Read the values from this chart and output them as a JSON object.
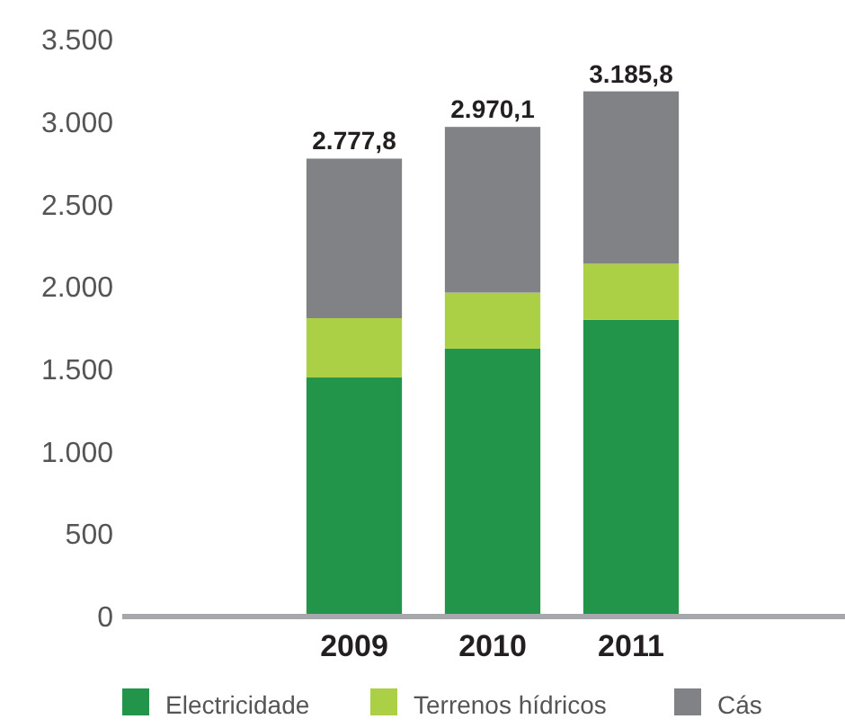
{
  "chart_data": {
    "type": "bar",
    "stacked": true,
    "categories": [
      "2009",
      "2010",
      "2011"
    ],
    "series": [
      {
        "name": "Electricidade",
        "color": "#22954a",
        "values": [
          1450,
          1625,
          1800
        ]
      },
      {
        "name": "Terrenos hídricos",
        "color": "#abcf45",
        "values": [
          360,
          340,
          340
        ]
      },
      {
        "name": "Cás",
        "color": "#818285",
        "values": [
          967.8,
          1005.1,
          1045.8
        ]
      }
    ],
    "totals": [
      "2.777,8",
      "2.970,1",
      "3.185,8"
    ],
    "ylim": [
      0,
      3500
    ],
    "yticks": [
      {
        "value": 0,
        "label": "0"
      },
      {
        "value": 500,
        "label": "500"
      },
      {
        "value": 1000,
        "label": "1.000"
      },
      {
        "value": 1500,
        "label": "1.500"
      },
      {
        "value": 2000,
        "label": "2.000"
      },
      {
        "value": 2500,
        "label": "2.500"
      },
      {
        "value": 3000,
        "label": "3.000"
      },
      {
        "value": 3500,
        "label": "3.500"
      }
    ],
    "grid": false,
    "legend": "bottom"
  }
}
